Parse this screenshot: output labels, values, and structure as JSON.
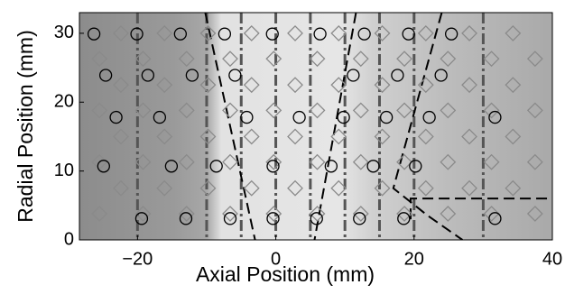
{
  "chart_data": {
    "type": "scatter",
    "xlabel": "Axial Position (mm)",
    "ylabel": "Radial Position (mm)",
    "xlim": [
      -28.4,
      40
    ],
    "ylim": [
      0,
      33
    ],
    "xticks": [
      {
        "value": -20,
        "label": "−20"
      },
      0,
      20,
      40
    ],
    "yticks": [
      0,
      10,
      20,
      30
    ],
    "vlines": [
      -20,
      -10,
      -5,
      0,
      5,
      10,
      15,
      20,
      30
    ],
    "boundaries": [
      {
        "x": [
          -10.2,
          -3
        ],
        "values": [
          33,
          0
        ]
      },
      {
        "x": [
          11.6,
          5.6
        ],
        "values": [
          33,
          0
        ]
      },
      {
        "x": [
          24,
          17,
          22,
          27
        ],
        "values": [
          33,
          7.5,
          3.5,
          0
        ]
      },
      {
        "x": [
          19.5,
          19.5,
          40
        ],
        "values": [
          3,
          6,
          6
        ]
      }
    ],
    "series": [
      {
        "marker": "diamond",
        "color": "#8a8a8a",
        "x": [
          -25.5,
          -19.2,
          -12.9,
          -6.6,
          -0.3,
          6,
          12.3,
          18.6,
          24.9,
          31.2,
          37.5,
          -22.4,
          -16.1,
          -9.8,
          -3.5,
          2.8,
          9.1,
          15.4,
          21.7,
          28,
          34.3,
          -25.5,
          -19.2,
          -12.9,
          -6.6,
          -0.3,
          6,
          12.3,
          18.6,
          24.9,
          31.2,
          37.5,
          -22.4,
          -16.1,
          -9.8,
          -3.5,
          2.8,
          9.1,
          15.4,
          21.7,
          28,
          34.3,
          -25.5,
          -19.2,
          -12.9,
          -6.6,
          -0.3,
          6,
          12.3,
          18.6,
          24.9,
          31.2,
          37.5,
          -22.4,
          -16.1,
          -9.8,
          -3.5,
          2.8,
          9.1,
          15.4,
          21.7,
          28,
          34.3,
          -25.5,
          -19.2,
          -12.9,
          -6.6,
          -0.3,
          6,
          12.3,
          18.6,
          24.9,
          31.2,
          37.5,
          -22.4,
          -16.1,
          -9.8,
          -3.5,
          2.8,
          9.1,
          15.4,
          21.7,
          28,
          34.3
        ],
        "values": [
          3.8,
          3.8,
          3.8,
          3.8,
          3.8,
          3.8,
          3.8,
          3.8,
          3.8,
          3.8,
          3.8,
          7.5,
          7.5,
          7.5,
          7.5,
          7.5,
          7.5,
          7.5,
          7.5,
          7.5,
          7.5,
          11.3,
          11.3,
          11.3,
          11.3,
          11.3,
          11.3,
          11.3,
          11.3,
          11.3,
          11.3,
          11.3,
          15,
          15,
          15,
          15,
          15,
          15,
          15,
          15,
          15,
          15,
          18.8,
          18.8,
          18.8,
          18.8,
          18.8,
          18.8,
          18.8,
          18.8,
          18.8,
          18.8,
          18.8,
          22.5,
          22.5,
          22.5,
          22.5,
          22.5,
          22.5,
          22.5,
          22.5,
          22.5,
          22.5,
          26.3,
          26.3,
          26.3,
          26.3,
          26.3,
          26.3,
          26.3,
          26.3,
          26.3,
          26.3,
          26.3,
          30,
          30,
          30,
          30,
          30,
          30,
          30,
          30,
          30,
          30
        ]
      },
      {
        "marker": "circle",
        "color": "#000000",
        "x": [
          -19.4,
          -13,
          -6.6,
          -0.4,
          5.9,
          12.1,
          18.5,
          31.7,
          -24.9,
          -15.1,
          -8.6,
          -0.4,
          8,
          14.1,
          20.2,
          -23.1,
          -16.8,
          -4.2,
          3.4,
          9.8,
          16,
          22.2,
          31.7,
          -24.6,
          -18.5,
          -12.1,
          -5.9,
          11.2,
          17.6,
          23.9,
          -26.3,
          -20.1,
          -13.8,
          -7.4,
          -0.5,
          6.4,
          12.8,
          19.2,
          25.4
        ],
        "values": [
          3.1,
          3.1,
          3.1,
          3.1,
          3.1,
          3.1,
          3.1,
          3.1,
          10.7,
          10.7,
          10.7,
          10.7,
          10.7,
          10.7,
          10.7,
          17.8,
          17.8,
          17.8,
          17.8,
          17.8,
          17.8,
          17.8,
          17.8,
          23.9,
          23.9,
          23.9,
          23.9,
          23.9,
          23.9,
          23.9,
          29.9,
          29.9,
          29.9,
          29.9,
          29.9,
          29.9,
          29.9,
          29.9,
          29.9
        ]
      }
    ]
  }
}
